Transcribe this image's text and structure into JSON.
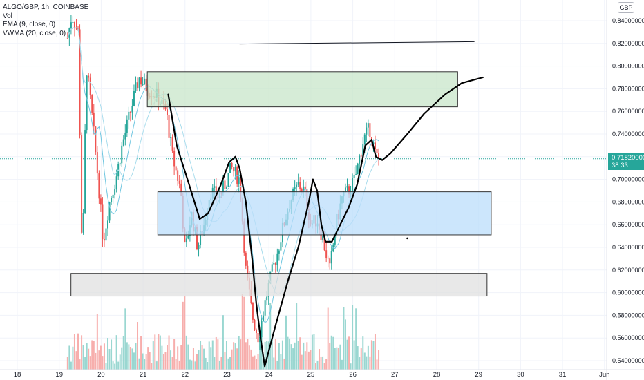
{
  "legend": {
    "symbol": "ALGO/GBP, 1h, COINBASE",
    "vol": "Vol",
    "ema": "EMA (9, close, 0)",
    "vwma": "VWMA (20, close, 0)"
  },
  "currency": "GBP",
  "price_tag": {
    "price": "0.71820000",
    "countdown": "38:33",
    "color": "#26a69a"
  },
  "chart_data": {
    "type": "candlestick",
    "symbol": "ALGO/GBP",
    "interval": "1h",
    "exchange": "COINBASE",
    "y_ticks": [
      "0.84000000",
      "0.82000000",
      "0.80000000",
      "0.78000000",
      "0.76000000",
      "0.74000000",
      "0.72000000",
      "0.70000000",
      "0.68000000",
      "0.66000000",
      "0.64000000",
      "0.62000000",
      "0.60000000",
      "0.58000000",
      "0.56000000",
      "0.54000000"
    ],
    "ylim": [
      0.535,
      0.845
    ],
    "x_ticks": [
      "18",
      "19",
      "20",
      "21",
      "22",
      "23",
      "24",
      "25",
      "26",
      "27",
      "28",
      "29",
      "30",
      "31",
      "Jun"
    ],
    "xlim_days": [
      17.6,
      32.1
    ],
    "last_price": 0.7182,
    "candle_colors": {
      "up": "#26a69a",
      "down": "#ef5350"
    },
    "price_path": [
      [
        19.2,
        0.825
      ],
      [
        19.3,
        0.845
      ],
      [
        19.45,
        0.83
      ],
      [
        19.55,
        0.62
      ],
      [
        19.65,
        0.8
      ],
      [
        19.8,
        0.75
      ],
      [
        19.95,
        0.69
      ],
      [
        20.05,
        0.645
      ],
      [
        20.2,
        0.68
      ],
      [
        20.35,
        0.7
      ],
      [
        20.5,
        0.73
      ],
      [
        20.7,
        0.76
      ],
      [
        20.9,
        0.79
      ],
      [
        21.1,
        0.78
      ],
      [
        21.3,
        0.775
      ],
      [
        21.55,
        0.76
      ],
      [
        21.7,
        0.72
      ],
      [
        21.9,
        0.69
      ],
      [
        22.0,
        0.635
      ],
      [
        22.15,
        0.67
      ],
      [
        22.3,
        0.64
      ],
      [
        22.45,
        0.66
      ],
      [
        22.6,
        0.69
      ],
      [
        22.8,
        0.685
      ],
      [
        22.95,
        0.695
      ],
      [
        23.1,
        0.71
      ],
      [
        23.3,
        0.7
      ],
      [
        23.45,
        0.62
      ],
      [
        23.6,
        0.58
      ],
      [
        23.75,
        0.56
      ],
      [
        23.9,
        0.59
      ],
      [
        24.05,
        0.615
      ],
      [
        24.2,
        0.635
      ],
      [
        24.35,
        0.66
      ],
      [
        24.5,
        0.68
      ],
      [
        24.7,
        0.695
      ],
      [
        24.85,
        0.69
      ],
      [
        25.0,
        0.66
      ],
      [
        25.15,
        0.665
      ],
      [
        25.3,
        0.645
      ],
      [
        25.45,
        0.62
      ],
      [
        25.6,
        0.66
      ],
      [
        25.75,
        0.685
      ],
      [
        25.9,
        0.69
      ],
      [
        26.05,
        0.7
      ],
      [
        26.25,
        0.735
      ],
      [
        26.4,
        0.745
      ],
      [
        26.55,
        0.72
      ],
      [
        26.65,
        0.7182
      ]
    ],
    "drawings": {
      "rectangles": [
        {
          "name": "resistance-zone",
          "x": [
            21.1,
            28.5
          ],
          "y": [
            0.764,
            0.795
          ],
          "fill": "#c8e6c9"
        },
        {
          "name": "mid-zone",
          "x": [
            21.35,
            29.3
          ],
          "y": [
            0.651,
            0.689
          ],
          "fill": "#bbdefb"
        },
        {
          "name": "support-zone",
          "x": [
            19.28,
            29.2
          ],
          "y": [
            0.597,
            0.617
          ],
          "fill": "#e0e0e0"
        }
      ],
      "trend_line": {
        "from": [
          23.3,
          0.8195
        ],
        "to": [
          28.9,
          0.8215
        ]
      },
      "freehand_path": [
        [
          21.6,
          0.775
        ],
        [
          21.8,
          0.73
        ],
        [
          22.1,
          0.695
        ],
        [
          22.35,
          0.665
        ],
        [
          22.55,
          0.67
        ],
        [
          22.85,
          0.695
        ],
        [
          23.05,
          0.715
        ],
        [
          23.2,
          0.72
        ],
        [
          23.3,
          0.71
        ],
        [
          23.45,
          0.68
        ],
        [
          23.6,
          0.63
        ],
        [
          23.7,
          0.59
        ],
        [
          23.8,
          0.56
        ],
        [
          23.9,
          0.535
        ],
        [
          24.15,
          0.57
        ],
        [
          24.45,
          0.61
        ],
        [
          24.7,
          0.64
        ],
        [
          24.95,
          0.68
        ],
        [
          25.05,
          0.7
        ],
        [
          25.15,
          0.69
        ],
        [
          25.25,
          0.66
        ],
        [
          25.35,
          0.645
        ],
        [
          25.5,
          0.645
        ],
        [
          25.7,
          0.66
        ],
        [
          25.9,
          0.675
        ],
        [
          26.1,
          0.695
        ],
        [
          26.3,
          0.73
        ],
        [
          26.45,
          0.735
        ],
        [
          26.55,
          0.72
        ],
        [
          26.7,
          0.717
        ],
        [
          26.9,
          0.723
        ],
        [
          27.3,
          0.74
        ],
        [
          27.7,
          0.758
        ],
        [
          28.2,
          0.775
        ],
        [
          28.6,
          0.785
        ],
        [
          29.1,
          0.79
        ]
      ],
      "dot": [
        27.3,
        0.648
      ]
    }
  }
}
